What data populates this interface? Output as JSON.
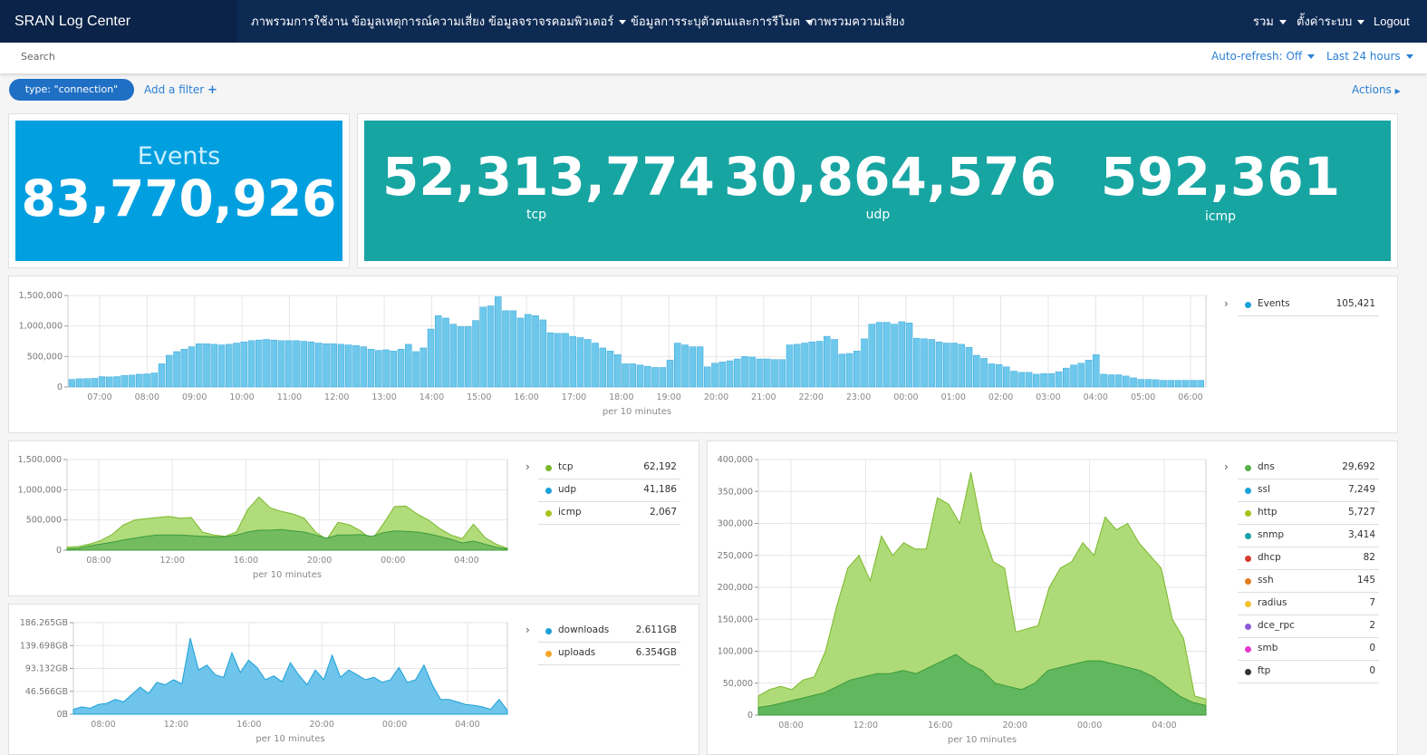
{
  "app_title": "SRAN Log Center",
  "nav": {
    "items": [
      {
        "label": "ภาพรวมการใช้งาน",
        "dropdown": false
      },
      {
        "label": "ข้อมูลเหตุการณ์ความเสี่ยง",
        "dropdown": false
      },
      {
        "label": "ข้อมูลจราจรคอมพิวเตอร์",
        "dropdown": true
      },
      {
        "label": "ข้อมูลการระบุตัวตนและการรีโมต",
        "dropdown": true
      },
      {
        "label": "ภาพรวมความเสี่ยง",
        "dropdown": false
      }
    ],
    "right": {
      "all": "รวม",
      "settings": "ตั้งค่าระบบ",
      "logout": "Logout"
    }
  },
  "search": {
    "placeholder": "Search",
    "auto_refresh": "Auto-refresh: Off",
    "time_range": "Last 24 hours"
  },
  "filter_bar": {
    "pill": "type: \"connection\"",
    "add_filter": "Add a filter",
    "actions": "Actions"
  },
  "colors": {
    "navy": "#0d2a53",
    "blue": "#009fe0",
    "teal": "#17a5a2",
    "bar": "#6dc8ec",
    "green_light": "#a7d86d",
    "green_dark": "#57b04a",
    "blue_area": "#6ec4ea"
  },
  "metrics": {
    "events": {
      "label": "Events",
      "value": "83,770,926"
    },
    "tcp": {
      "label": "tcp",
      "value": "52,313,774"
    },
    "udp": {
      "label": "udp",
      "value": "30,864,576"
    },
    "icmp": {
      "label": "icmp",
      "value": "592,361"
    }
  },
  "chart_data": [
    {
      "type": "bar",
      "title": "",
      "xlabel": "per 10 minutes",
      "ylabel": "",
      "ylim": [
        0,
        1500000
      ],
      "yticks": [
        "1,500,000",
        "1,000,000",
        "500,000",
        "0"
      ],
      "xticks": [
        "07:00",
        "08:00",
        "09:00",
        "10:00",
        "11:00",
        "12:00",
        "13:00",
        "14:00",
        "15:00",
        "16:00",
        "17:00",
        "18:00",
        "19:00",
        "20:00",
        "21:00",
        "22:00",
        "23:00",
        "00:00",
        "01:00",
        "02:00",
        "03:00",
        "04:00",
        "05:00",
        "06:00"
      ],
      "legend": [
        {
          "name": "Events",
          "value": "105,421",
          "color": "#1ba1d8"
        }
      ],
      "values": [
        125000,
        135000,
        138000,
        142000,
        170000,
        165000,
        170000,
        190000,
        195000,
        210000,
        215000,
        230000,
        380000,
        520000,
        580000,
        620000,
        660000,
        710000,
        710000,
        700000,
        690000,
        700000,
        720000,
        740000,
        760000,
        770000,
        780000,
        770000,
        760000,
        760000,
        760000,
        750000,
        740000,
        720000,
        710000,
        710000,
        700000,
        690000,
        680000,
        660000,
        620000,
        600000,
        610000,
        590000,
        620000,
        700000,
        580000,
        640000,
        950000,
        1170000,
        1130000,
        1030000,
        990000,
        990000,
        1090000,
        1310000,
        1330000,
        1480000,
        1250000,
        1250000,
        1130000,
        1190000,
        1170000,
        1100000,
        890000,
        880000,
        880000,
        830000,
        810000,
        780000,
        720000,
        640000,
        590000,
        530000,
        380000,
        380000,
        360000,
        340000,
        320000,
        320000,
        440000,
        720000,
        690000,
        660000,
        660000,
        330000,
        390000,
        410000,
        430000,
        460000,
        500000,
        490000,
        460000,
        460000,
        450000,
        450000,
        690000,
        700000,
        720000,
        740000,
        750000,
        830000,
        780000,
        540000,
        550000,
        590000,
        790000,
        1030000,
        1060000,
        1060000,
        1030000,
        1070000,
        1050000,
        800000,
        790000,
        780000,
        740000,
        720000,
        720000,
        700000,
        650000,
        520000,
        470000,
        380000,
        370000,
        330000,
        260000,
        240000,
        240000,
        210000,
        220000,
        220000,
        250000,
        310000,
        360000,
        390000,
        440000,
        530000,
        210000,
        200000,
        200000,
        180000,
        150000,
        125000,
        125000,
        120000,
        110000,
        110000,
        110000,
        110000,
        110000,
        110000
      ]
    },
    {
      "type": "area",
      "xlabel": "per 10 minutes",
      "ylim": [
        0,
        1500000
      ],
      "yticks": [
        "1,500,000",
        "1,000,000",
        "500,000",
        "0"
      ],
      "xticks": [
        "08:00",
        "12:00",
        "16:00",
        "20:00",
        "00:00",
        "04:00"
      ],
      "series": [
        {
          "name": "tcp",
          "value": "62,192",
          "color": "#7ab82a",
          "values": [
            50000,
            60000,
            100000,
            160000,
            260000,
            420000,
            500000,
            520000,
            540000,
            560000,
            530000,
            540000,
            300000,
            250000,
            230000,
            300000,
            670000,
            880000,
            700000,
            640000,
            600000,
            530000,
            300000,
            180000,
            460000,
            420000,
            320000,
            170000,
            430000,
            720000,
            730000,
            600000,
            500000,
            360000,
            250000,
            190000,
            430000,
            210000,
            100000,
            30000
          ]
        },
        {
          "name": "udp",
          "value": "41,186",
          "color": "#1ba1d8",
          "values": [
            20000,
            30000,
            70000,
            100000,
            130000,
            170000,
            200000,
            230000,
            250000,
            250000,
            250000,
            240000,
            230000,
            220000,
            220000,
            250000,
            300000,
            330000,
            330000,
            340000,
            320000,
            300000,
            250000,
            200000,
            250000,
            250000,
            260000,
            230000,
            290000,
            320000,
            310000,
            300000,
            270000,
            230000,
            180000,
            120000,
            150000,
            100000,
            50000,
            20000
          ]
        },
        {
          "name": "icmp",
          "value": "2,067",
          "color": "#a8c21a",
          "values": []
        }
      ]
    },
    {
      "type": "area",
      "xlabel": "per 10 minutes",
      "ylim": [
        0,
        186265
      ],
      "yticks": [
        "186.265GB",
        "139.698GB",
        "93.132GB",
        "46.566GB",
        "0B"
      ],
      "xticks": [
        "08:00",
        "12:00",
        "16:00",
        "20:00",
        "00:00",
        "04:00"
      ],
      "series": [
        {
          "name": "downloads",
          "value": "2.611GB",
          "color": "#1ba1d8",
          "values": [
            10000,
            15000,
            12000,
            20000,
            22000,
            30000,
            25000,
            40000,
            55000,
            42000,
            65000,
            60000,
            70000,
            62000,
            155000,
            90000,
            100000,
            80000,
            75000,
            125000,
            85000,
            110000,
            95000,
            70000,
            78000,
            66000,
            105000,
            80000,
            60000,
            90000,
            70000,
            120000,
            75000,
            90000,
            80000,
            70000,
            75000,
            65000,
            70000,
            95000,
            65000,
            70000,
            100000,
            60000,
            30000,
            30000,
            25000,
            20000,
            18000,
            15000,
            10000,
            30000,
            8000
          ]
        },
        {
          "name": "uploads",
          "value": "6.354GB",
          "color": "#f5a623",
          "values": []
        }
      ]
    },
    {
      "type": "area",
      "xlabel": "per 10 minutes",
      "ylim": [
        0,
        400000
      ],
      "yticks": [
        "400,000",
        "350,000",
        "300,000",
        "250,000",
        "200,000",
        "150,000",
        "100,000",
        "50,000",
        "0"
      ],
      "xticks": [
        "08:00",
        "12:00",
        "16:00",
        "20:00",
        "00:00",
        "04:00"
      ],
      "series": [
        {
          "name": "dns",
          "value": "29,692",
          "color": "#57b04a",
          "values": [
            30000,
            40000,
            45000,
            40000,
            55000,
            60000,
            100000,
            170000,
            230000,
            250000,
            210000,
            280000,
            250000,
            270000,
            260000,
            260000,
            340000,
            330000,
            300000,
            380000,
            290000,
            240000,
            230000,
            130000,
            135000,
            140000,
            200000,
            230000,
            240000,
            270000,
            250000,
            310000,
            290000,
            300000,
            270000,
            250000,
            230000,
            150000,
            120000,
            30000,
            25000
          ]
        },
        {
          "name": "ssl",
          "value": "7,249",
          "color": "#1ba1d8",
          "values": [
            12000,
            15000,
            20000,
            25000,
            30000,
            35000,
            45000,
            55000,
            60000,
            65000,
            65000,
            70000,
            65000,
            75000,
            85000,
            95000,
            80000,
            70000,
            50000,
            45000,
            40000,
            50000,
            70000,
            75000,
            80000,
            85000,
            85000,
            80000,
            75000,
            70000,
            60000,
            45000,
            30000,
            20000,
            15000
          ]
        },
        {
          "name": "http",
          "value": "5,727",
          "color": "#a8c21a",
          "values": []
        },
        {
          "name": "snmp",
          "value": "3,414",
          "color": "#1aa3a2",
          "values": []
        },
        {
          "name": "dhcp",
          "value": "82",
          "color": "#d43a2f",
          "values": []
        },
        {
          "name": "ssh",
          "value": "145",
          "color": "#e07b1f",
          "values": []
        },
        {
          "name": "radius",
          "value": "7",
          "color": "#f2c12e",
          "values": []
        },
        {
          "name": "dce_rpc",
          "value": "2",
          "color": "#8a5bd6",
          "values": []
        },
        {
          "name": "smb",
          "value": "0",
          "color": "#e23ad0",
          "values": []
        },
        {
          "name": "ftp",
          "value": "0",
          "color": "#333333",
          "values": []
        }
      ]
    }
  ]
}
